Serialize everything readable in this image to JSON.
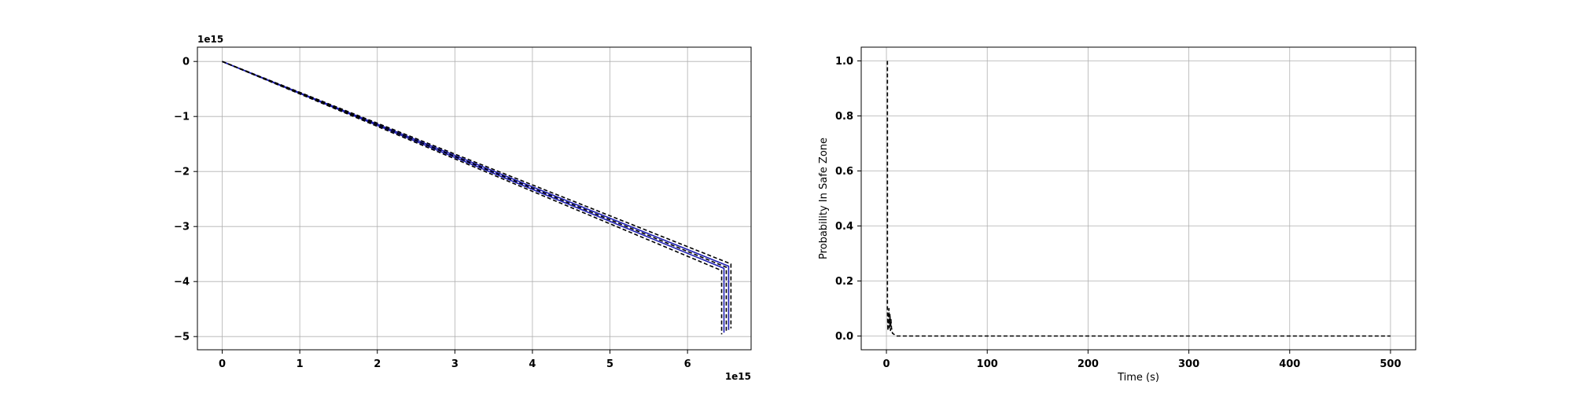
{
  "chart_data": [
    {
      "type": "line",
      "title": "",
      "xlabel": "",
      "ylabel": "",
      "x_offset_label": "1e15",
      "y_offset_label": "1e15",
      "xlim": [
        -0.32,
        6.82
      ],
      "ylim": [
        -5.24,
        0.26
      ],
      "xticks": [
        0,
        1,
        2,
        3,
        4,
        5,
        6
      ],
      "yticks": [
        0,
        -1,
        -2,
        -3,
        -4,
        -5
      ],
      "ytick_labels": [
        "0",
        "−1",
        "−2",
        "−3",
        "−4",
        "−5"
      ],
      "grid": true,
      "series": [
        {
          "style": "solid",
          "color": "#1f1fb4",
          "x": [
            0,
            6.47,
            6.47
          ],
          "y": [
            0,
            -3.76,
            -4.93
          ]
        },
        {
          "style": "solid",
          "color": "#1f1fb4",
          "x": [
            0,
            6.53,
            6.53
          ],
          "y": [
            0,
            -3.72,
            -4.88
          ]
        },
        {
          "style": "dashed",
          "color": "#000000",
          "x": [
            0,
            6.44,
            6.44
          ],
          "y": [
            0,
            -3.8,
            -4.96
          ]
        },
        {
          "style": "dashed",
          "color": "#000000",
          "x": [
            0,
            6.5,
            6.5
          ],
          "y": [
            0,
            -3.74,
            -4.91
          ]
        },
        {
          "style": "dashed",
          "color": "#000000",
          "x": [
            0,
            6.56,
            6.56
          ],
          "y": [
            0,
            -3.68,
            -4.85
          ]
        }
      ]
    },
    {
      "type": "line",
      "title": "",
      "xlabel": "Time (s)",
      "ylabel": "Probability In Safe Zone",
      "xlim": [
        -25,
        525
      ],
      "ylim": [
        -0.05,
        1.05
      ],
      "xticks": [
        0,
        100,
        200,
        300,
        400,
        500
      ],
      "yticks": [
        0.0,
        0.2,
        0.4,
        0.6,
        0.8,
        1.0
      ],
      "ytick_labels": [
        "0.0",
        "0.2",
        "0.4",
        "0.6",
        "0.8",
        "1.0"
      ],
      "grid": true,
      "series": [
        {
          "style": "dashed",
          "color": "#000000",
          "x": [
            1,
            1,
            1.5,
            2,
            2.5,
            3,
            3.5,
            4,
            4.5,
            5,
            6,
            8,
            10,
            20,
            50,
            100,
            200,
            300,
            400,
            500
          ],
          "y": [
            1.0,
            0.09,
            0.02,
            0.07,
            0.1,
            0.03,
            0.08,
            0.02,
            0.06,
            0.03,
            0.01,
            0.005,
            0.0,
            0.0,
            0.0,
            0.0,
            0.0,
            0.0,
            0.0,
            0.0
          ]
        }
      ]
    }
  ]
}
